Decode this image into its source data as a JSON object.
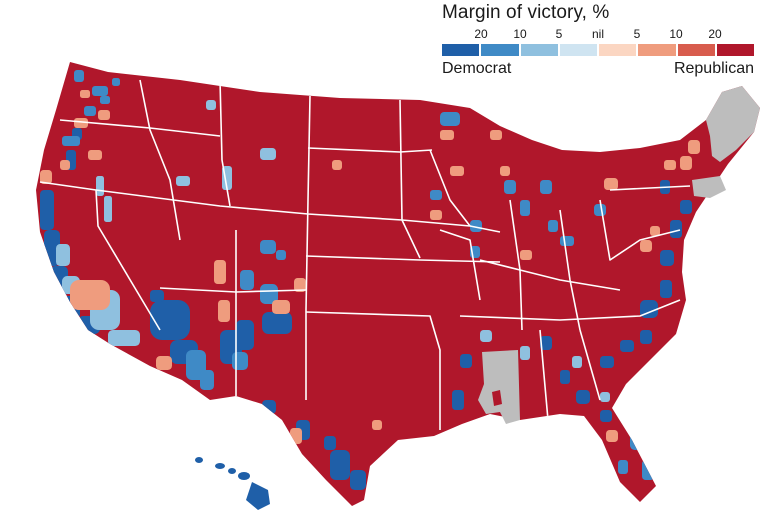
{
  "legend": {
    "title": "Margin of victory, %",
    "ticks": [
      {
        "label": "20"
      },
      {
        "label": "10"
      },
      {
        "label": "5"
      },
      {
        "label": "nil"
      },
      {
        "label": "5"
      },
      {
        "label": "10"
      },
      {
        "label": "20"
      }
    ],
    "bins": [
      {
        "color": "#1f5fa8"
      },
      {
        "color": "#3f8ac6"
      },
      {
        "color": "#8fc0df"
      },
      {
        "color": "#cfe4f1"
      },
      {
        "color": "#fbd6c2"
      },
      {
        "color": "#ef9c7e"
      },
      {
        "color": "#d85c4d"
      },
      {
        "color": "#b0172b"
      }
    ],
    "left_label": "Democrat",
    "right_label": "Republican"
  },
  "colors": {
    "republican_strong": "#b0172b",
    "republican_medium": "#d85c4d",
    "republican_light": "#ef9c7e",
    "republican_nil": "#fbd6c2",
    "democrat_nil": "#cfe4f1",
    "democrat_light": "#8fc0df",
    "democrat_medium": "#3f8ac6",
    "democrat_strong": "#1f5fa8",
    "no_data": "#bdbdbd"
  }
}
